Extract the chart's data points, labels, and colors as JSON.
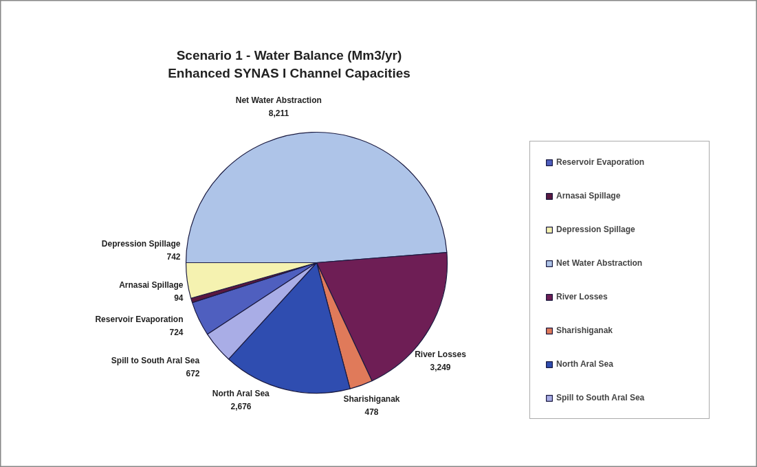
{
  "chart_data": {
    "type": "pie",
    "title": "Scenario 1 - Water Balance (Mm3/yr)",
    "subtitle": "Enhanced SYNAS I Channel Capacities",
    "categories": [
      "Reservoir Evaporation",
      "Arnasai Spillage",
      "Depression Spillage",
      "Net Water Abstraction",
      "River Losses",
      "Sharishiganak",
      "North Aral Sea",
      "Spill to South Aral Sea"
    ],
    "values": [
      724,
      94,
      742,
      8211,
      3249,
      478,
      2676,
      672
    ],
    "colors": [
      "#4f5fbf",
      "#5a1840",
      "#f5f2b0",
      "#aec4e8",
      "#6e1e55",
      "#e07a5a",
      "#2f4db0",
      "#a9ade6"
    ],
    "value_labels": [
      "724",
      "94",
      "742",
      "8,211",
      "3,249",
      "478",
      "2,676",
      "672"
    ],
    "legend": "right"
  }
}
